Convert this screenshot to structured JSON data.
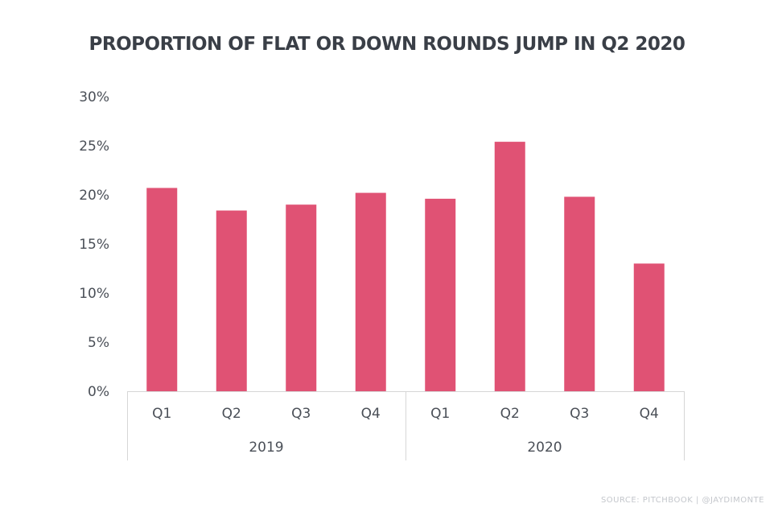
{
  "chart_data": {
    "type": "bar",
    "title": "PROPORTION OF FLAT OR DOWN ROUNDS JUMP IN Q2 2020",
    "categories": [
      "Q1",
      "Q2",
      "Q3",
      "Q4",
      "Q1",
      "Q2",
      "Q3",
      "Q4"
    ],
    "groups": [
      {
        "label": "2019",
        "start": 0,
        "count": 4
      },
      {
        "label": "2020",
        "start": 4,
        "count": 4
      }
    ],
    "values": [
      20.7,
      18.4,
      19.0,
      20.2,
      19.6,
      25.4,
      19.8,
      13.0
    ],
    "ylim": [
      0,
      30
    ],
    "yticks": [
      0,
      5,
      10,
      15,
      20,
      25,
      30
    ],
    "ytick_labels": [
      "0%",
      "5%",
      "10%",
      "15%",
      "20%",
      "25%",
      "30%"
    ],
    "xlabel": "",
    "ylabel": "",
    "grid": false,
    "legend": "none",
    "bar_color": "#e05274"
  },
  "source": "SOURCE: PITCHBOOK | @JAYDIMONTE"
}
